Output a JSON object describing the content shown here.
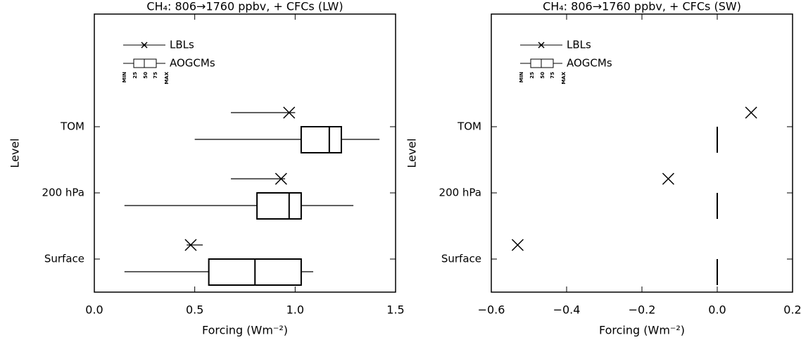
{
  "chart_data": [
    {
      "type": "box",
      "title": "CH₄: 806→1760 ppbv, + CFCs (LW)",
      "x_label": "Forcing (Wm⁻²)",
      "y_label": "Level",
      "categories": [
        "TOM",
        "200 hPa",
        "Surface"
      ],
      "xlim": [
        0.0,
        1.5
      ],
      "xticks": [
        {
          "value": 0.0,
          "label": "0.0"
        },
        {
          "value": 0.5,
          "label": "0.5"
        },
        {
          "value": 1.0,
          "label": "1.0"
        },
        {
          "value": 1.5,
          "label": "1.5"
        }
      ],
      "legend_box_labels": [
        "MIN",
        "25",
        "50",
        "75",
        "MAX"
      ],
      "series": [
        {
          "name": "LBLs",
          "values": [
            0.97,
            0.93,
            0.48
          ],
          "min": [
            0.68,
            0.68,
            0.46
          ],
          "max": [
            1.0,
            0.95,
            0.54
          ]
        },
        {
          "name": "AOGCMs",
          "min": [
            0.5,
            0.15,
            0.15
          ],
          "q1": [
            1.03,
            0.81,
            0.57
          ],
          "median": [
            1.17,
            0.97,
            0.8
          ],
          "q3": [
            1.23,
            1.03,
            1.03
          ],
          "max": [
            1.42,
            1.29,
            1.09
          ]
        }
      ]
    },
    {
      "type": "box",
      "title": "CH₄: 806→1760 ppbv, + CFCs (SW)",
      "x_label": "Forcing (Wm⁻²)",
      "y_label": "Level",
      "categories": [
        "TOM",
        "200 hPa",
        "Surface"
      ],
      "xlim": [
        -0.6,
        0.2
      ],
      "xticks": [
        {
          "value": -0.6,
          "label": "−0.6"
        },
        {
          "value": -0.4,
          "label": "−0.4"
        },
        {
          "value": -0.2,
          "label": "−0.2"
        },
        {
          "value": 0.0,
          "label": "0.0"
        },
        {
          "value": 0.2,
          "label": "0.2"
        }
      ],
      "legend_box_labels": [
        "MIN",
        "25",
        "50",
        "75",
        "MAX"
      ],
      "series": [
        {
          "name": "LBLs",
          "values": [
            0.09,
            -0.13,
            -0.53
          ]
        },
        {
          "name": "AOGCMs",
          "min": [
            0,
            0,
            0
          ],
          "q1": [
            0,
            0,
            0
          ],
          "median": [
            0,
            0,
            0
          ],
          "q3": [
            0,
            0,
            0
          ],
          "max": [
            0,
            0,
            0
          ]
        }
      ]
    }
  ]
}
